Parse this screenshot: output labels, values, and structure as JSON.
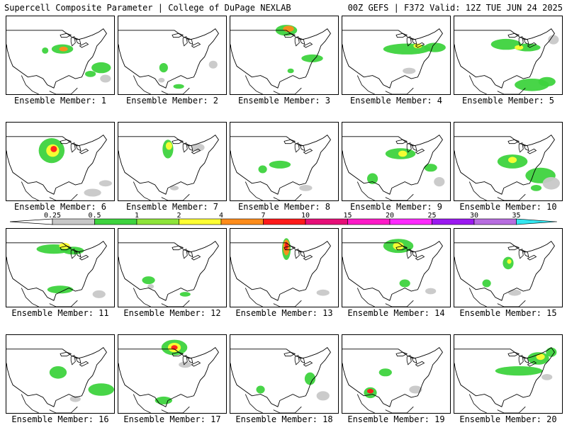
{
  "header": {
    "left": "Supercell Composite Parameter | College of DuPage NEXLAB",
    "right": "00Z GEFS | F372 Valid: 12Z TUE JUN 24 2025"
  },
  "label_prefix": "Ensemble Member:",
  "members": [
    1,
    2,
    3,
    4,
    5,
    6,
    7,
    8,
    9,
    10,
    11,
    12,
    13,
    14,
    15,
    16,
    17,
    18,
    19,
    20
  ],
  "colorbar": {
    "values": [
      "0.25",
      "0.5",
      "1",
      "2",
      "4",
      "7",
      "10",
      "15",
      "20",
      "25",
      "30",
      "35"
    ],
    "colors": [
      "#c8c8c8",
      "#3ed33e",
      "#8ee43a",
      "#ffff33",
      "#ff8c1a",
      "#ff1a1a",
      "#e60f78",
      "#ff1ac8",
      "#ff2aff",
      "#9b19f0",
      "#b86de0",
      "#33e6f0"
    ]
  },
  "colors": {
    "map_lines": "#000000"
  },
  "blobs": [
    [
      [
        0.52,
        0.42,
        0.1,
        0.06,
        "#3ed33e"
      ],
      [
        0.53,
        0.42,
        0.04,
        0.03,
        "#ff8c1a"
      ],
      [
        0.36,
        0.44,
        0.03,
        0.04,
        "#3ed33e"
      ],
      [
        0.88,
        0.66,
        0.09,
        0.07,
        "#3ed33e"
      ],
      [
        0.78,
        0.74,
        0.05,
        0.04,
        "#3ed33e"
      ],
      [
        0.92,
        0.8,
        0.05,
        0.05,
        "#c8c8c8"
      ]
    ],
    [
      [
        0.42,
        0.66,
        0.04,
        0.06,
        "#3ed33e"
      ],
      [
        0.4,
        0.82,
        0.03,
        0.03,
        "#c8c8c8"
      ],
      [
        0.88,
        0.62,
        0.04,
        0.05,
        "#c8c8c8"
      ],
      [
        0.56,
        0.9,
        0.05,
        0.03,
        "#3ed33e"
      ]
    ],
    [
      [
        0.52,
        0.18,
        0.1,
        0.07,
        "#3ed33e"
      ],
      [
        0.54,
        0.16,
        0.05,
        0.04,
        "#ff8c1a"
      ],
      [
        0.76,
        0.54,
        0.1,
        0.05,
        "#3ed33e"
      ],
      [
        0.56,
        0.7,
        0.03,
        0.03,
        "#3ed33e"
      ]
    ],
    [
      [
        0.6,
        0.42,
        0.22,
        0.07,
        "#3ed33e"
      ],
      [
        0.86,
        0.4,
        0.1,
        0.06,
        "#3ed33e"
      ],
      [
        0.7,
        0.38,
        0.04,
        0.03,
        "#ffff33"
      ],
      [
        0.62,
        0.7,
        0.06,
        0.04,
        "#c8c8c8"
      ]
    ],
    [
      [
        0.48,
        0.36,
        0.14,
        0.07,
        "#3ed33e"
      ],
      [
        0.68,
        0.4,
        0.12,
        0.05,
        "#3ed33e"
      ],
      [
        0.6,
        0.4,
        0.04,
        0.03,
        "#ffff33"
      ],
      [
        0.92,
        0.3,
        0.05,
        0.06,
        "#c8c8c8"
      ],
      [
        0.72,
        0.88,
        0.16,
        0.08,
        "#3ed33e"
      ],
      [
        0.86,
        0.84,
        0.08,
        0.06,
        "#3ed33e"
      ]
    ],
    [
      [
        0.42,
        0.36,
        0.12,
        0.16,
        "#3ed33e"
      ],
      [
        0.43,
        0.36,
        0.06,
        0.08,
        "#ffff33"
      ],
      [
        0.44,
        0.34,
        0.03,
        0.04,
        "#ff1a1a"
      ],
      [
        0.92,
        0.78,
        0.06,
        0.04,
        "#c8c8c8"
      ],
      [
        0.8,
        0.9,
        0.08,
        0.05,
        "#c8c8c8"
      ]
    ],
    [
      [
        0.46,
        0.34,
        0.05,
        0.12,
        "#3ed33e"
      ],
      [
        0.47,
        0.3,
        0.03,
        0.05,
        "#ffff33"
      ],
      [
        0.74,
        0.32,
        0.06,
        0.05,
        "#c8c8c8"
      ],
      [
        0.52,
        0.84,
        0.04,
        0.03,
        "#c8c8c8"
      ]
    ],
    [
      [
        0.46,
        0.54,
        0.1,
        0.05,
        "#3ed33e"
      ],
      [
        0.3,
        0.6,
        0.04,
        0.05,
        "#3ed33e"
      ],
      [
        0.7,
        0.84,
        0.06,
        0.04,
        "#c8c8c8"
      ]
    ],
    [
      [
        0.54,
        0.4,
        0.14,
        0.07,
        "#3ed33e"
      ],
      [
        0.56,
        0.4,
        0.04,
        0.04,
        "#ffff33"
      ],
      [
        0.28,
        0.72,
        0.05,
        0.07,
        "#3ed33e"
      ],
      [
        0.82,
        0.58,
        0.06,
        0.05,
        "#3ed33e"
      ],
      [
        0.9,
        0.76,
        0.05,
        0.06,
        "#c8c8c8"
      ]
    ],
    [
      [
        0.54,
        0.5,
        0.14,
        0.09,
        "#3ed33e"
      ],
      [
        0.54,
        0.48,
        0.04,
        0.04,
        "#ffff33"
      ],
      [
        0.8,
        0.68,
        0.14,
        0.1,
        "#3ed33e"
      ],
      [
        0.9,
        0.78,
        0.08,
        0.08,
        "#c8c8c8"
      ],
      [
        0.76,
        0.84,
        0.05,
        0.04,
        "#3ed33e"
      ]
    ],
    [
      [
        0.44,
        0.26,
        0.16,
        0.06,
        "#3ed33e"
      ],
      [
        0.62,
        0.28,
        0.1,
        0.05,
        "#3ed33e"
      ],
      [
        0.54,
        0.22,
        0.05,
        0.04,
        "#ffff33"
      ],
      [
        0.5,
        0.78,
        0.12,
        0.05,
        "#3ed33e"
      ],
      [
        0.86,
        0.84,
        0.06,
        0.05,
        "#c8c8c8"
      ]
    ],
    [
      [
        0.28,
        0.66,
        0.06,
        0.05,
        "#3ed33e"
      ],
      [
        0.3,
        0.74,
        0.03,
        0.03,
        "#c8c8c8"
      ],
      [
        0.62,
        0.84,
        0.05,
        0.03,
        "#3ed33e"
      ]
    ],
    [
      [
        0.52,
        0.26,
        0.04,
        0.14,
        "#3ed33e"
      ],
      [
        0.52,
        0.24,
        0.03,
        0.1,
        "#ff8c1a"
      ],
      [
        0.52,
        0.22,
        0.015,
        0.05,
        "#ff1a1a"
      ],
      [
        0.86,
        0.82,
        0.06,
        0.04,
        "#c8c8c8"
      ]
    ],
    [
      [
        0.52,
        0.22,
        0.14,
        0.09,
        "#3ed33e"
      ],
      [
        0.52,
        0.22,
        0.05,
        0.05,
        "#ffff33"
      ],
      [
        0.58,
        0.7,
        0.05,
        0.05,
        "#3ed33e"
      ],
      [
        0.82,
        0.8,
        0.05,
        0.04,
        "#c8c8c8"
      ]
    ],
    [
      [
        0.5,
        0.44,
        0.05,
        0.08,
        "#3ed33e"
      ],
      [
        0.51,
        0.42,
        0.02,
        0.03,
        "#ffff33"
      ],
      [
        0.3,
        0.7,
        0.04,
        0.05,
        "#3ed33e"
      ],
      [
        0.56,
        0.82,
        0.06,
        0.04,
        "#c8c8c8"
      ]
    ],
    [
      [
        0.48,
        0.48,
        0.08,
        0.08,
        "#3ed33e"
      ],
      [
        0.88,
        0.7,
        0.12,
        0.08,
        "#3ed33e"
      ],
      [
        0.64,
        0.82,
        0.05,
        0.04,
        "#c8c8c8"
      ]
    ],
    [
      [
        0.52,
        0.16,
        0.12,
        0.1,
        "#3ed33e"
      ],
      [
        0.52,
        0.16,
        0.06,
        0.06,
        "#ffff33"
      ],
      [
        0.52,
        0.16,
        0.03,
        0.03,
        "#ff1a1a"
      ],
      [
        0.62,
        0.38,
        0.06,
        0.04,
        "#c8c8c8"
      ],
      [
        0.42,
        0.84,
        0.08,
        0.05,
        "#3ed33e"
      ]
    ],
    [
      [
        0.74,
        0.56,
        0.05,
        0.08,
        "#3ed33e"
      ],
      [
        0.28,
        0.7,
        0.04,
        0.05,
        "#3ed33e"
      ],
      [
        0.86,
        0.78,
        0.06,
        0.06,
        "#c8c8c8"
      ]
    ],
    [
      [
        0.4,
        0.48,
        0.06,
        0.05,
        "#3ed33e"
      ],
      [
        0.26,
        0.74,
        0.06,
        0.07,
        "#3ed33e"
      ],
      [
        0.26,
        0.72,
        0.03,
        0.03,
        "#ff1a1a"
      ],
      [
        0.68,
        0.7,
        0.06,
        0.05,
        "#c8c8c8"
      ]
    ],
    [
      [
        0.6,
        0.46,
        0.22,
        0.06,
        "#3ed33e"
      ],
      [
        0.78,
        0.3,
        0.1,
        0.08,
        "#3ed33e"
      ],
      [
        0.8,
        0.28,
        0.04,
        0.04,
        "#ffff33"
      ],
      [
        0.9,
        0.22,
        0.05,
        0.06,
        "#3ed33e"
      ],
      [
        0.86,
        0.54,
        0.05,
        0.04,
        "#c8c8c8"
      ]
    ]
  ]
}
